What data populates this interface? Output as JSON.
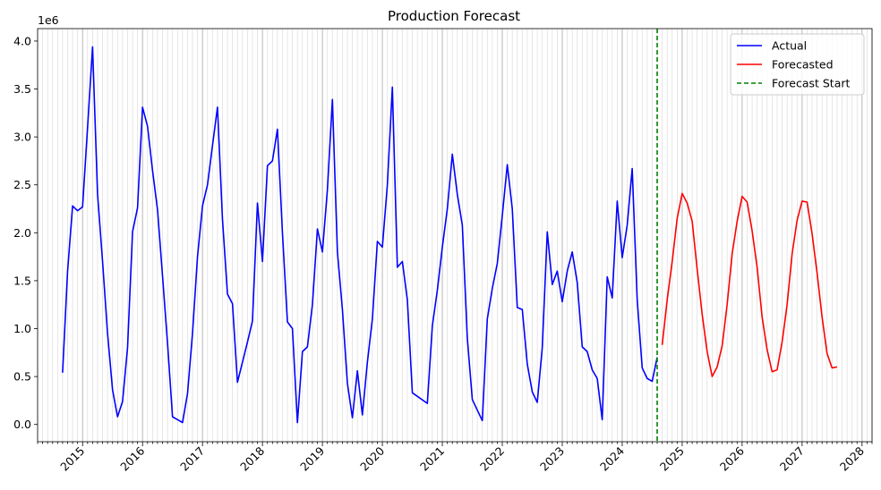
{
  "chart_data": {
    "type": "line",
    "title": "Production Forecast",
    "xlabel": "",
    "ylabel": "",
    "y_offset_label": "1e6",
    "x_tick_labels": [
      "2015",
      "2016",
      "2017",
      "2018",
      "2019",
      "2020",
      "2021",
      "2022",
      "2023",
      "2024",
      "2025",
      "2026",
      "2027",
      "2028"
    ],
    "y_tick_labels": [
      "0.0",
      "0.5",
      "1.0",
      "1.5",
      "2.0",
      "2.5",
      "3.0",
      "3.5",
      "4.0"
    ],
    "y_ticks": [
      0,
      500000,
      1000000,
      1500000,
      2000000,
      2500000,
      3000000,
      3500000,
      4000000
    ],
    "xlim": [
      "2014-04-01",
      "2028-03-01"
    ],
    "ylim": [
      -180000,
      4130000
    ],
    "grid": "vertical, monthly",
    "legend_position": "top-right",
    "forecast_start": "2024-08",
    "series": [
      {
        "name": "Actual",
        "color": "#0000ff",
        "style": "solid",
        "points": [
          [
            "2014-09",
            540000
          ],
          [
            "2014-10",
            1600000
          ],
          [
            "2014-11",
            2280000
          ],
          [
            "2014-12",
            2230000
          ],
          [
            "2015-01",
            2270000
          ],
          [
            "2015-02",
            3100000
          ],
          [
            "2015-03",
            3940000
          ],
          [
            "2015-04",
            2400000
          ],
          [
            "2015-05",
            1700000
          ],
          [
            "2015-06",
            950000
          ],
          [
            "2015-07",
            360000
          ],
          [
            "2015-08",
            80000
          ],
          [
            "2015-09",
            240000
          ],
          [
            "2015-10",
            800000
          ],
          [
            "2015-11",
            2010000
          ],
          [
            "2015-12",
            2260000
          ],
          [
            "2016-01",
            3310000
          ],
          [
            "2016-02",
            3110000
          ],
          [
            "2016-03",
            2650000
          ],
          [
            "2016-04",
            2240000
          ],
          [
            "2016-05",
            1550000
          ],
          [
            "2016-06",
            850000
          ],
          [
            "2016-07",
            80000
          ],
          [
            "2016-08",
            50000
          ],
          [
            "2016-09",
            20000
          ],
          [
            "2016-10",
            320000
          ],
          [
            "2016-11",
            950000
          ],
          [
            "2016-12",
            1750000
          ],
          [
            "2017-01",
            2280000
          ],
          [
            "2017-02",
            2500000
          ],
          [
            "2017-03",
            2910000
          ],
          [
            "2017-04",
            3310000
          ],
          [
            "2017-05",
            2140000
          ],
          [
            "2017-06",
            1360000
          ],
          [
            "2017-07",
            1260000
          ],
          [
            "2017-08",
            440000
          ],
          [
            "2017-09",
            650000
          ],
          [
            "2017-10",
            860000
          ],
          [
            "2017-11",
            1080000
          ],
          [
            "2017-12",
            2310000
          ],
          [
            "2018-01",
            1700000
          ],
          [
            "2018-02",
            2700000
          ],
          [
            "2018-03",
            2750000
          ],
          [
            "2018-04",
            3080000
          ],
          [
            "2018-05",
            2000000
          ],
          [
            "2018-06",
            1070000
          ],
          [
            "2018-07",
            1000000
          ],
          [
            "2018-08",
            20000
          ],
          [
            "2018-09",
            760000
          ],
          [
            "2018-10",
            810000
          ],
          [
            "2018-11",
            1250000
          ],
          [
            "2018-12",
            2040000
          ],
          [
            "2019-01",
            1800000
          ],
          [
            "2019-02",
            2450000
          ],
          [
            "2019-03",
            3390000
          ],
          [
            "2019-04",
            1800000
          ],
          [
            "2019-05",
            1200000
          ],
          [
            "2019-06",
            430000
          ],
          [
            "2019-07",
            70000
          ],
          [
            "2019-08",
            560000
          ],
          [
            "2019-09",
            100000
          ],
          [
            "2019-10",
            650000
          ],
          [
            "2019-11",
            1100000
          ],
          [
            "2019-12",
            1910000
          ],
          [
            "2020-01",
            1850000
          ],
          [
            "2020-02",
            2500000
          ],
          [
            "2020-03",
            3520000
          ],
          [
            "2020-04",
            1640000
          ],
          [
            "2020-05",
            1700000
          ],
          [
            "2020-06",
            1300000
          ],
          [
            "2020-07",
            330000
          ],
          [
            "2020-10",
            220000
          ],
          [
            "2020-11",
            1030000
          ],
          [
            "2020-12",
            1400000
          ],
          [
            "2021-01",
            1850000
          ],
          [
            "2021-02",
            2250000
          ],
          [
            "2021-03",
            2820000
          ],
          [
            "2021-04",
            2400000
          ],
          [
            "2021-05",
            2080000
          ],
          [
            "2021-06",
            900000
          ],
          [
            "2021-07",
            260000
          ],
          [
            "2021-09",
            40000
          ],
          [
            "2021-10",
            1100000
          ],
          [
            "2021-11",
            1420000
          ],
          [
            "2021-12",
            1680000
          ],
          [
            "2022-01",
            2180000
          ],
          [
            "2022-02",
            2710000
          ],
          [
            "2022-03",
            2250000
          ],
          [
            "2022-04",
            1220000
          ],
          [
            "2022-05",
            1200000
          ],
          [
            "2022-06",
            630000
          ],
          [
            "2022-07",
            340000
          ],
          [
            "2022-08",
            230000
          ],
          [
            "2022-09",
            800000
          ],
          [
            "2022-10",
            2010000
          ],
          [
            "2022-11",
            1460000
          ],
          [
            "2022-12",
            1600000
          ],
          [
            "2023-01",
            1280000
          ],
          [
            "2023-02",
            1600000
          ],
          [
            "2023-03",
            1800000
          ],
          [
            "2023-04",
            1480000
          ],
          [
            "2023-05",
            810000
          ],
          [
            "2023-06",
            760000
          ],
          [
            "2023-07",
            570000
          ],
          [
            "2023-08",
            480000
          ],
          [
            "2023-09",
            50000
          ],
          [
            "2023-10",
            1540000
          ],
          [
            "2023-11",
            1320000
          ],
          [
            "2023-12",
            2330000
          ],
          [
            "2024-01",
            1740000
          ],
          [
            "2024-02",
            2080000
          ],
          [
            "2024-03",
            2670000
          ],
          [
            "2024-04",
            1300000
          ],
          [
            "2024-05",
            590000
          ],
          [
            "2024-06",
            480000
          ],
          [
            "2024-07",
            450000
          ],
          [
            "2024-08",
            700000
          ]
        ]
      },
      {
        "name": "Forecasted",
        "color": "#ff0000",
        "style": "solid",
        "points": [
          [
            "2024-09",
            830000
          ],
          [
            "2024-10",
            1300000
          ],
          [
            "2024-11",
            1700000
          ],
          [
            "2024-12",
            2150000
          ],
          [
            "2025-01",
            2410000
          ],
          [
            "2025-02",
            2310000
          ],
          [
            "2025-03",
            2120000
          ],
          [
            "2025-04",
            1620000
          ],
          [
            "2025-05",
            1150000
          ],
          [
            "2025-06",
            760000
          ],
          [
            "2025-07",
            500000
          ],
          [
            "2025-08",
            600000
          ],
          [
            "2025-09",
            820000
          ],
          [
            "2025-10",
            1250000
          ],
          [
            "2025-11",
            1780000
          ],
          [
            "2025-12",
            2120000
          ],
          [
            "2026-01",
            2380000
          ],
          [
            "2026-02",
            2320000
          ],
          [
            "2026-03",
            2020000
          ],
          [
            "2026-04",
            1640000
          ],
          [
            "2026-05",
            1120000
          ],
          [
            "2026-06",
            780000
          ],
          [
            "2026-07",
            550000
          ],
          [
            "2026-08",
            570000
          ],
          [
            "2026-09",
            860000
          ],
          [
            "2026-10",
            1250000
          ],
          [
            "2026-11",
            1780000
          ],
          [
            "2026-12",
            2130000
          ],
          [
            "2027-01",
            2330000
          ],
          [
            "2027-02",
            2320000
          ],
          [
            "2027-03",
            1990000
          ],
          [
            "2027-04",
            1580000
          ],
          [
            "2027-05",
            1120000
          ],
          [
            "2027-06",
            740000
          ],
          [
            "2027-07",
            590000
          ],
          [
            "2027-08",
            600000
          ]
        ]
      },
      {
        "name": "Forecast Start",
        "color": "#008000",
        "style": "dashed",
        "x": "2024-08"
      }
    ]
  }
}
